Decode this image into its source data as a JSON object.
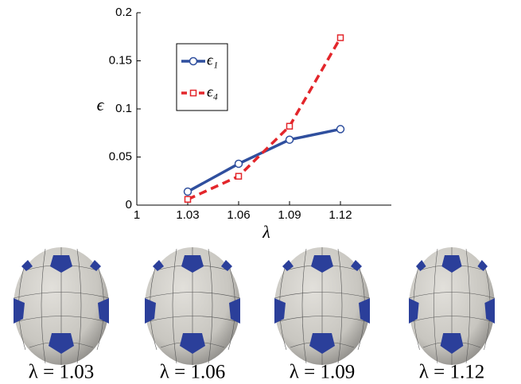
{
  "chart_data": {
    "type": "line",
    "x_label": "λ",
    "y_label": "ϵ",
    "x": [
      1.03,
      1.06,
      1.09,
      1.12
    ],
    "series": [
      {
        "name": "ϵ₁",
        "color": "#2f4f9e",
        "marker": "circle",
        "dash": false,
        "values": [
          0.014,
          0.043,
          0.068,
          0.079
        ]
      },
      {
        "name": "ϵ₄",
        "color": "#e3262b",
        "marker": "square",
        "dash": true,
        "values": [
          0.006,
          0.03,
          0.082,
          0.174
        ]
      }
    ],
    "xlim": [
      1,
      1.15
    ],
    "xticks": [
      1,
      1.03,
      1.06,
      1.09,
      1.12
    ],
    "ylim": [
      0,
      0.2
    ],
    "yticks": [
      0,
      0.05,
      0.1,
      0.15,
      0.2
    ]
  },
  "panels": [
    {
      "caption": "λ = 1.03"
    },
    {
      "caption": "λ = 1.06"
    },
    {
      "caption": "λ = 1.09"
    },
    {
      "caption": "λ = 1.12"
    }
  ]
}
